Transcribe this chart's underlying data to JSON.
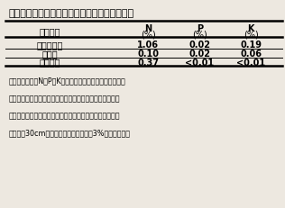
{
  "title": "表１　有機性肥料とバガス炭の主要元素含有量",
  "col_header_row1": [
    "肥料種類",
    "N",
    "P",
    "K"
  ],
  "col_header_row2": [
    "",
    "(%)",
    "(%)",
    "(%)"
  ],
  "rows": [
    [
      "植物性堆肥",
      "1.06",
      "0.02",
      "0.19"
    ],
    [
      "消化液",
      "0.10",
      "0.02",
      "0.06"
    ],
    [
      "バガス炭",
      "0.37",
      "<0.01",
      "<0.01"
    ]
  ],
  "note_lines": [
    "注：各試験区のN、P、K三元素の量を統一した。消化液区",
    "　　の窒素源はすべて消化液から、堆肥バランス区の窒素",
    "　　源は半分化学肥料、半分堆肥から取った。バガス炭は",
    "　　地下30cmまでの土壌の乾燥重量の3%を添加した。"
  ],
  "bg_color": "#ede8e0",
  "title_fontsize": 8.0,
  "header_fontsize": 7.0,
  "data_fontsize": 7.0,
  "note_fontsize": 5.8
}
